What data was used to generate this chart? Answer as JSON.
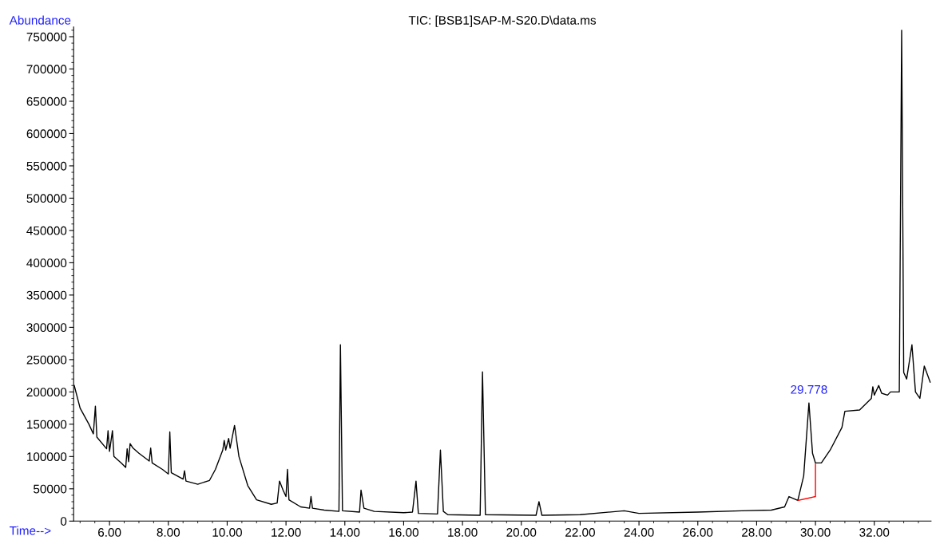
{
  "chart_data": {
    "type": "line",
    "title": "TIC: [BSB1]SAP-M-S20.D\\data.ms",
    "xlabel": "Time-->",
    "ylabel": "Abundance",
    "xlim": [
      4.78,
      33.93
    ],
    "ylim": [
      0,
      765000
    ],
    "xticks": [
      {
        "value": 6,
        "label": "6.00"
      },
      {
        "value": 8,
        "label": "8.00"
      },
      {
        "value": 10,
        "label": "10.00"
      },
      {
        "value": 12,
        "label": "12.00"
      },
      {
        "value": 14,
        "label": "14.00"
      },
      {
        "value": 16,
        "label": "16.00"
      },
      {
        "value": 18,
        "label": "18.00"
      },
      {
        "value": 20,
        "label": "20.00"
      },
      {
        "value": 22,
        "label": "22.00"
      },
      {
        "value": 24,
        "label": "24.00"
      },
      {
        "value": 26,
        "label": "26.00"
      },
      {
        "value": 28,
        "label": "28.00"
      },
      {
        "value": 30,
        "label": "30.00"
      },
      {
        "value": 32,
        "label": "32.00"
      }
    ],
    "yticks": [
      0,
      50000,
      100000,
      150000,
      200000,
      250000,
      300000,
      350000,
      400000,
      450000,
      500000,
      550000,
      600000,
      650000,
      700000,
      750000
    ],
    "grid": false,
    "legend": false,
    "marker": "none",
    "line_style": "solid",
    "series": [
      {
        "color": "#000000",
        "x": [
          4.8,
          5.0,
          5.3,
          5.45,
          5.52,
          5.57,
          5.9,
          5.95,
          6.0,
          6.1,
          6.15,
          6.4,
          6.55,
          6.6,
          6.65,
          6.7,
          6.8,
          7.0,
          7.35,
          7.4,
          7.45,
          7.8,
          8.0,
          8.05,
          8.1,
          8.3,
          8.5,
          8.55,
          8.6,
          9.0,
          9.4,
          9.6,
          9.85,
          9.9,
          9.95,
          10.05,
          10.1,
          10.25,
          10.4,
          10.7,
          11.0,
          11.5,
          11.7,
          11.78,
          11.9,
          12.0,
          12.05,
          12.1,
          12.5,
          12.8,
          12.85,
          12.9,
          13.3,
          13.8,
          13.85,
          13.92,
          14.5,
          14.55,
          14.65,
          15.0,
          16.0,
          16.3,
          16.42,
          16.5,
          17.15,
          17.25,
          17.35,
          17.5,
          18.6,
          18.68,
          18.78,
          20.5,
          20.6,
          20.7,
          22.0,
          23.5,
          24.0,
          26.0,
          27.5,
          28.5,
          28.95,
          29.1,
          29.4,
          29.6,
          29.778,
          29.9,
          30.0,
          30.2,
          30.5,
          30.9,
          31.0,
          31.5,
          31.9,
          31.95,
          32.0,
          32.15,
          32.25,
          32.45,
          32.55,
          32.85,
          32.93,
          33.0,
          33.1,
          33.28,
          33.4,
          33.55,
          33.7,
          33.9
        ],
        "values": [
          210000,
          175000,
          150000,
          135000,
          178000,
          130000,
          112000,
          140000,
          108000,
          140000,
          100000,
          90000,
          83000,
          112000,
          92000,
          120000,
          113000,
          105000,
          93000,
          113000,
          90000,
          80000,
          73000,
          138000,
          75000,
          70000,
          65000,
          78000,
          62000,
          57000,
          63000,
          80000,
          110000,
          125000,
          110000,
          128000,
          113000,
          148000,
          100000,
          55000,
          33000,
          26000,
          28000,
          62000,
          48000,
          38000,
          80000,
          33000,
          22000,
          20000,
          38000,
          20000,
          17000,
          15000,
          273000,
          16000,
          14000,
          48000,
          20000,
          15000,
          13000,
          14000,
          62000,
          12000,
          11000,
          110000,
          15000,
          10000,
          9000,
          231000,
          10000,
          9000,
          30000,
          9000,
          10000,
          16000,
          12000,
          14000,
          16000,
          17000,
          22000,
          38000,
          32000,
          70000,
          183000,
          105000,
          90000,
          90000,
          110000,
          145000,
          170000,
          172000,
          190000,
          208000,
          195000,
          210000,
          198000,
          195000,
          200000,
          200000,
          760000,
          230000,
          220000,
          273000,
          200000,
          190000,
          240000,
          215000
        ]
      },
      {
        "color": "#ff0000",
        "x": [
          29.4,
          30.0,
          30.0
        ],
        "values": [
          32000,
          38000,
          88000
        ]
      }
    ],
    "annotations": [
      {
        "text": "29.778",
        "x": 29.778,
        "y": 183000
      }
    ]
  }
}
